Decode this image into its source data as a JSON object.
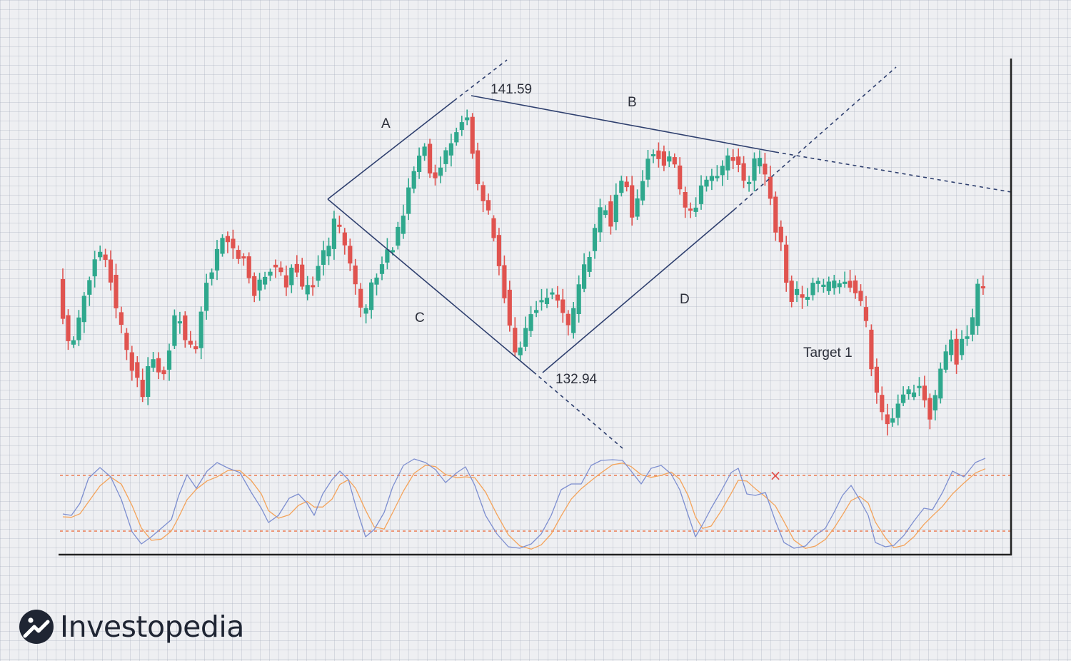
{
  "chart_data": {
    "type": "candlestick",
    "price_labels": {
      "high": "141.59",
      "low": "132.94"
    },
    "pattern_labels": {
      "a": "A",
      "b": "B",
      "c": "C",
      "d": "D",
      "target": "Target 1"
    },
    "colors": {
      "up": "#2fa88d",
      "down": "#e0534f",
      "trendline": "#2e3f6e",
      "k_line": "#7e8fd0",
      "d_line": "#f4a35a",
      "level_line": "#ec7a4f",
      "axis": "#222222",
      "cross": "#e0534f"
    },
    "stochastic": {
      "upper_level": 80,
      "lower_level": 20,
      "cross_marker": "×"
    }
  },
  "brand": {
    "name": "Investopedia"
  }
}
